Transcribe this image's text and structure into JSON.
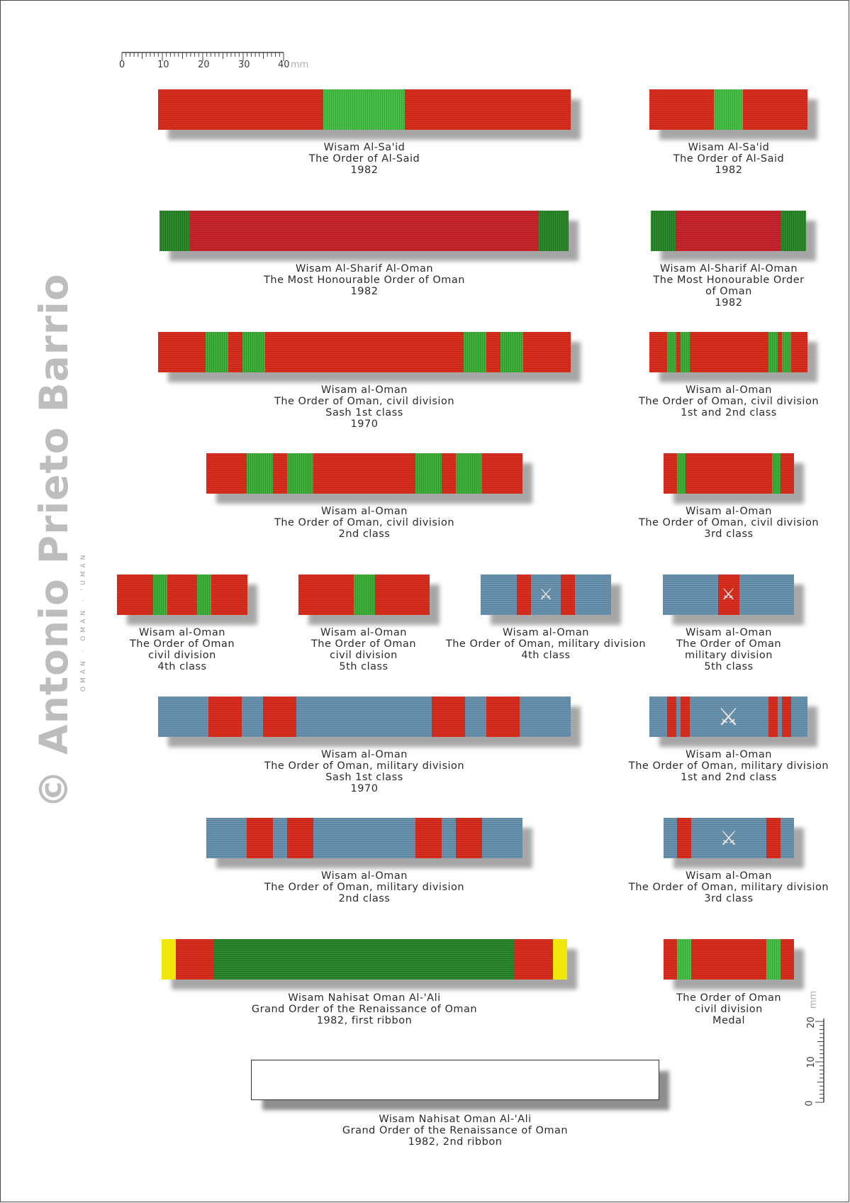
{
  "credit": "© Antonio Prieto Barrio",
  "subtitle": "OMÁN · OMAN · 'UMAN",
  "scale": {
    "unit": "mm",
    "horizontal_labels": [
      "0",
      "10",
      "20",
      "30",
      "40"
    ],
    "vertical_labels": [
      "0",
      "10",
      "20"
    ]
  },
  "colors": {
    "red": "#d8301f",
    "green": "#3fae3a",
    "dark_green": "#1f6e22",
    "blue": "#6b93ae",
    "yellow": "#f1e80b"
  },
  "ribbons": [
    {
      "id": "said-large",
      "emblem": "",
      "caption": [
        "Wisam Al-Sa'id",
        "The Order of Al-Said",
        "1982"
      ]
    },
    {
      "id": "said-small",
      "emblem": "",
      "caption": [
        "Wisam Al-Sa'id",
        "The Order of Al-Said",
        "1982"
      ]
    },
    {
      "id": "sharif-large",
      "emblem": "",
      "caption": [
        "Wisam Al-Sharif Al-Oman",
        "The Most Honourable Order of Oman",
        "1982"
      ]
    },
    {
      "id": "sharif-small",
      "emblem": "",
      "caption": [
        "Wisam Al-Sharif Al-Oman",
        "The Most Honourable Order",
        "of Oman",
        "1982"
      ]
    },
    {
      "id": "civil-sash",
      "emblem": "",
      "caption": [
        "Wisam al-Oman",
        "The Order of Oman, civil division",
        "Sash 1st class",
        "1970"
      ]
    },
    {
      "id": "civil-1st2nd",
      "emblem": "",
      "caption": [
        "Wisam al-Oman",
        "The Order of Oman, civil division",
        "1st and 2nd class"
      ]
    },
    {
      "id": "civil-2nd",
      "emblem": "",
      "caption": [
        "Wisam al-Oman",
        "The Order of Oman, civil division",
        "2nd class"
      ]
    },
    {
      "id": "civil-3rd",
      "emblem": "",
      "caption": [
        "Wisam al-Oman",
        "The Order of Oman, civil division",
        "3rd class"
      ]
    },
    {
      "id": "civil-4th",
      "emblem": "",
      "caption": [
        "Wisam al-Oman",
        "The Order of Oman",
        "civil division",
        "4th class"
      ]
    },
    {
      "id": "civil-5th",
      "emblem": "",
      "caption": [
        "Wisam al-Oman",
        "The Order of Oman",
        "civil division",
        "5th class"
      ]
    },
    {
      "id": "military-4th",
      "emblem": "⚔",
      "caption": [
        "Wisam al-Oman",
        "The Order of Oman, military division",
        "4th class"
      ]
    },
    {
      "id": "military-5th",
      "emblem": "⚔",
      "caption": [
        "Wisam al-Oman",
        "The Order of Oman",
        "military division",
        "5th class"
      ]
    },
    {
      "id": "military-sash",
      "emblem": "",
      "caption": [
        "Wisam al-Oman",
        "The Order of Oman, military division",
        "Sash 1st class",
        "1970"
      ]
    },
    {
      "id": "military-1st2nd",
      "emblem": "⚔",
      "caption": [
        "Wisam al-Oman",
        "The Order of Oman, military division",
        "1st and 2nd class"
      ]
    },
    {
      "id": "military-2nd",
      "emblem": "",
      "caption": [
        "Wisam al-Oman",
        "The Order of Oman, military division",
        "2nd class"
      ]
    },
    {
      "id": "military-3rd",
      "emblem": "⚔",
      "caption": [
        "Wisam al-Oman",
        "The Order of Oman, military division",
        "3rd class"
      ]
    },
    {
      "id": "nahisat-1st",
      "emblem": "",
      "caption": [
        "Wisam Nahisat Oman Al-'Ali",
        "Grand Order of the Renaissance of Oman",
        "1982, first ribbon"
      ]
    },
    {
      "id": "civil-medal",
      "emblem": "",
      "caption": [
        "The Order of Oman",
        "civil division",
        "Medal"
      ]
    },
    {
      "id": "nahisat-2nd",
      "emblem": "",
      "caption": [
        "Wisam Nahisat Oman Al-'Ali",
        "Grand Order of the Renaissance of Oman",
        "1982, 2nd ribbon"
      ]
    }
  ]
}
